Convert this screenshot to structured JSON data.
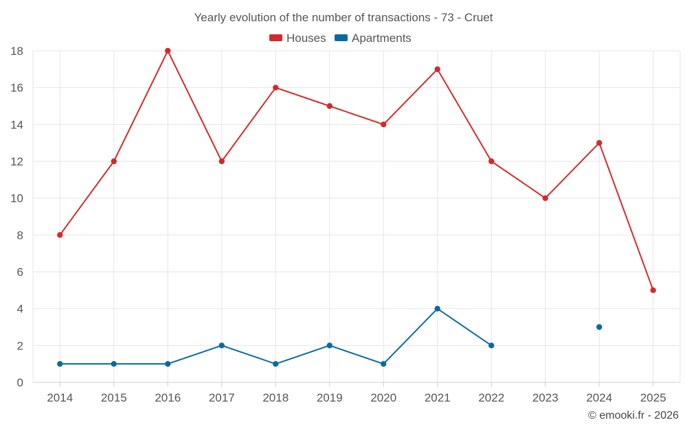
{
  "chart_data": {
    "type": "line",
    "title": "Yearly evolution of the number of transactions - 73 - Cruet",
    "categories": [
      "2014",
      "2015",
      "2016",
      "2017",
      "2018",
      "2019",
      "2020",
      "2021",
      "2022",
      "2023",
      "2024",
      "2025"
    ],
    "ylim": [
      0,
      18
    ],
    "yticks": [
      0,
      2,
      4,
      6,
      8,
      10,
      12,
      14,
      16,
      18
    ],
    "grid": true,
    "legend_position": "top-center",
    "series": [
      {
        "name": "Houses",
        "color": "#d42a2a",
        "values": [
          8,
          12,
          18,
          12,
          16,
          15,
          14,
          17,
          12,
          10,
          13,
          5
        ]
      },
      {
        "name": "Apartments",
        "color": "#0a6aa0",
        "values": [
          1,
          1,
          1,
          2,
          1,
          2,
          1,
          4,
          2,
          null,
          3,
          null
        ]
      }
    ]
  },
  "credit": "© emooki.fr - 2026"
}
